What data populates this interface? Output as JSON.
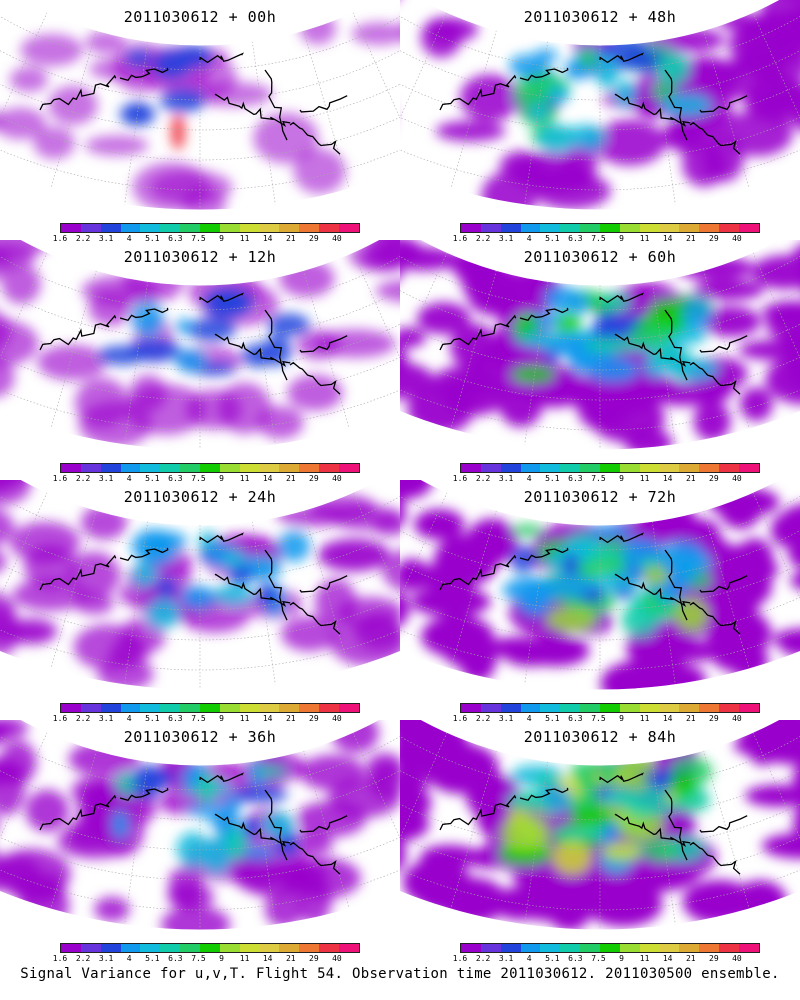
{
  "panels": [
    {
      "title": "2011030612 + 00h",
      "intensity": 0
    },
    {
      "title": "2011030612 + 48h",
      "intensity": 4
    },
    {
      "title": "2011030612 + 12h",
      "intensity": 1
    },
    {
      "title": "2011030612 + 60h",
      "intensity": 5
    },
    {
      "title": "2011030612 + 24h",
      "intensity": 2
    },
    {
      "title": "2011030612 + 72h",
      "intensity": 6
    },
    {
      "title": "2011030612 + 36h",
      "intensity": 3
    },
    {
      "title": "2011030612 + 84h",
      "intensity": 7
    }
  ],
  "colorbar": {
    "labels": [
      "1.6",
      "2.2",
      "3.1",
      "4",
      "5.1",
      "6.3",
      "7.5",
      "9",
      "11",
      "14",
      "21",
      "29",
      "40"
    ],
    "colors": [
      "#9900cc",
      "#6633dd",
      "#2244dd",
      "#1199ee",
      "#11bbdd",
      "#11ccaa",
      "#22cc66",
      "#11cc00",
      "#99dd33",
      "#ccdd33",
      "#ddcc44",
      "#ddaa33",
      "#ee7733",
      "#ee3344",
      "#ee1177"
    ]
  },
  "caption": "Signal Variance for u,v,T. Flight 54. Observation time 2011030612. 2011030500 ensemble."
}
